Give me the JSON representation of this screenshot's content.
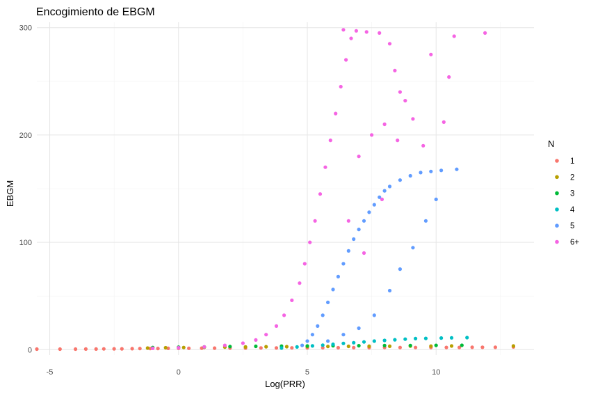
{
  "chart_data": {
    "type": "scatter",
    "title": "Encogimiento de EBGM",
    "xlabel": "Log(PRR)",
    "ylabel": "EBGM",
    "xlim": [
      -5.5,
      13.8
    ],
    "ylim": [
      -5,
      305
    ],
    "x_ticks": [
      -5,
      0,
      5,
      10
    ],
    "x_tick_labels": [
      "-5",
      "0",
      "5",
      "10"
    ],
    "y_ticks": [
      0,
      100,
      200,
      300
    ],
    "y_tick_labels": [
      "0",
      "100",
      "200",
      "300"
    ],
    "grid": true,
    "legend": {
      "title": "N",
      "placement": "right"
    },
    "series": [
      {
        "name": "1",
        "color": "#F8766D",
        "points": [
          [
            -5.5,
            0.5
          ],
          [
            -4.6,
            0.5
          ],
          [
            -4.0,
            0.5
          ],
          [
            -3.6,
            0.6
          ],
          [
            -3.2,
            0.6
          ],
          [
            -2.9,
            0.7
          ],
          [
            -2.5,
            0.8
          ],
          [
            -2.2,
            0.8
          ],
          [
            -1.8,
            0.9
          ],
          [
            -1.5,
            1.0
          ],
          [
            -1.1,
            1.0
          ],
          [
            -0.8,
            1.1
          ],
          [
            -0.4,
            1.2
          ],
          [
            0.0,
            1.3
          ],
          [
            0.4,
            1.3
          ],
          [
            0.9,
            1.4
          ],
          [
            1.4,
            1.4
          ],
          [
            2.0,
            1.5
          ],
          [
            2.6,
            1.5
          ],
          [
            3.2,
            1.6
          ],
          [
            3.8,
            1.6
          ],
          [
            4.4,
            1.7
          ],
          [
            5.0,
            1.7
          ],
          [
            5.6,
            1.8
          ],
          [
            6.2,
            1.8
          ],
          [
            6.8,
            1.9
          ],
          [
            7.4,
            1.9
          ],
          [
            8.0,
            2.0
          ],
          [
            8.6,
            2.0
          ],
          [
            9.2,
            2.0
          ],
          [
            9.8,
            2.1
          ],
          [
            10.4,
            2.1
          ],
          [
            10.9,
            2.1
          ],
          [
            11.4,
            2.2
          ],
          [
            11.8,
            2.2
          ],
          [
            12.3,
            2.2
          ],
          [
            13.0,
            2.5
          ]
        ]
      },
      {
        "name": "2",
        "color": "#B79F00",
        "points": [
          [
            -1.2,
            1.5
          ],
          [
            -0.5,
            1.8
          ],
          [
            0.2,
            2.0
          ],
          [
            1.0,
            2.2
          ],
          [
            1.8,
            2.4
          ],
          [
            2.6,
            2.5
          ],
          [
            3.4,
            2.7
          ],
          [
            4.2,
            2.8
          ],
          [
            5.0,
            2.9
          ],
          [
            5.8,
            3.0
          ],
          [
            6.6,
            3.1
          ],
          [
            7.4,
            3.2
          ],
          [
            8.2,
            3.2
          ],
          [
            9.0,
            3.3
          ],
          [
            9.8,
            3.3
          ],
          [
            10.6,
            3.4
          ],
          [
            13.0,
            3.4
          ]
        ]
      },
      {
        "name": "3",
        "color": "#00BA38",
        "points": [
          [
            -1.0,
            2.0
          ],
          [
            0.0,
            2.3
          ],
          [
            1.0,
            2.6
          ],
          [
            2.0,
            2.9
          ],
          [
            3.0,
            3.1
          ],
          [
            4.0,
            3.3
          ],
          [
            5.0,
            3.4
          ],
          [
            6.0,
            3.6
          ],
          [
            7.0,
            3.7
          ],
          [
            8.0,
            3.8
          ],
          [
            9.0,
            3.9
          ],
          [
            10.0,
            4.0
          ],
          [
            11.0,
            4.1
          ]
        ]
      },
      {
        "name": "4",
        "color": "#00BFC4",
        "points": [
          [
            4.0,
            1.5
          ],
          [
            4.6,
            2.5
          ],
          [
            5.2,
            3.5
          ],
          [
            5.6,
            4.2
          ],
          [
            6.0,
            5.0
          ],
          [
            6.4,
            5.8
          ],
          [
            6.8,
            6.5
          ],
          [
            7.2,
            7.2
          ],
          [
            7.6,
            8.0
          ],
          [
            8.0,
            8.6
          ],
          [
            8.4,
            9.2
          ],
          [
            8.8,
            9.8
          ],
          [
            9.2,
            10.3
          ],
          [
            9.6,
            10.5
          ],
          [
            10.2,
            10.8
          ],
          [
            10.6,
            11.0
          ],
          [
            11.2,
            11.2
          ]
        ]
      },
      {
        "name": "5",
        "color": "#619CFF",
        "points": [
          [
            4.8,
            4
          ],
          [
            5.0,
            8
          ],
          [
            5.2,
            14
          ],
          [
            5.4,
            22
          ],
          [
            5.6,
            32
          ],
          [
            5.8,
            44
          ],
          [
            6.0,
            56
          ],
          [
            6.2,
            68
          ],
          [
            6.4,
            80
          ],
          [
            6.6,
            92
          ],
          [
            6.8,
            103
          ],
          [
            7.0,
            112
          ],
          [
            7.2,
            120
          ],
          [
            7.4,
            128
          ],
          [
            7.6,
            135
          ],
          [
            7.8,
            142
          ],
          [
            8.0,
            148
          ],
          [
            8.2,
            152
          ],
          [
            8.6,
            158
          ],
          [
            9.0,
            162
          ],
          [
            9.4,
            165
          ],
          [
            9.8,
            166
          ],
          [
            10.2,
            167
          ],
          [
            10.8,
            168
          ],
          [
            5.8,
            8
          ],
          [
            6.4,
            14
          ],
          [
            7.0,
            20
          ],
          [
            7.6,
            32
          ],
          [
            8.2,
            55
          ],
          [
            8.6,
            75
          ],
          [
            9.1,
            95
          ],
          [
            9.6,
            120
          ],
          [
            10.0,
            140
          ]
        ]
      },
      {
        "name": "6+",
        "color": "#F564E3",
        "points": [
          [
            -1.0,
            1.2
          ],
          [
            0.0,
            1.8
          ],
          [
            1.0,
            2.6
          ],
          [
            1.8,
            4.0
          ],
          [
            2.5,
            6.0
          ],
          [
            3.0,
            9.0
          ],
          [
            3.4,
            14
          ],
          [
            3.8,
            22
          ],
          [
            4.1,
            32
          ],
          [
            4.4,
            46
          ],
          [
            4.7,
            62
          ],
          [
            4.9,
            80
          ],
          [
            5.1,
            100
          ],
          [
            5.3,
            120
          ],
          [
            5.5,
            145
          ],
          [
            5.7,
            170
          ],
          [
            5.9,
            195
          ],
          [
            6.1,
            220
          ],
          [
            6.3,
            245
          ],
          [
            6.5,
            270
          ],
          [
            6.7,
            290
          ],
          [
            6.4,
            298
          ],
          [
            6.9,
            297
          ],
          [
            7.3,
            296
          ],
          [
            7.8,
            295
          ],
          [
            8.2,
            285
          ],
          [
            8.4,
            260
          ],
          [
            8.6,
            240
          ],
          [
            8.8,
            232
          ],
          [
            9.1,
            215
          ],
          [
            9.5,
            190
          ],
          [
            9.8,
            275
          ],
          [
            10.3,
            212
          ],
          [
            10.5,
            254
          ],
          [
            10.7,
            292
          ],
          [
            11.9,
            295
          ],
          [
            7.0,
            180
          ],
          [
            7.5,
            200
          ],
          [
            8.0,
            210
          ],
          [
            7.9,
            140
          ],
          [
            7.2,
            90
          ],
          [
            6.6,
            120
          ],
          [
            8.5,
            195
          ]
        ]
      }
    ]
  }
}
